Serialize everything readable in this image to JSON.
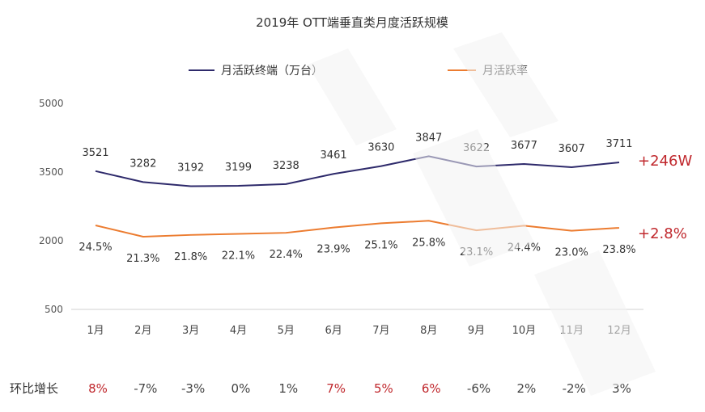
{
  "chart_data": {
    "type": "line",
    "title": "2019年 OTT端垂直类月度活跃规模",
    "categories": [
      "1月",
      "2月",
      "3月",
      "4月",
      "5月",
      "6月",
      "7月",
      "8月",
      "9月",
      "10月",
      "11月",
      "12月"
    ],
    "yticks": [
      "5000",
      "3500",
      "2000",
      "500"
    ],
    "ylim": [
      500,
      5000
    ],
    "legend_position": "top",
    "series": [
      {
        "name": "月活跃终端（万台）",
        "color": "#2e2a6b",
        "values": [
          3521,
          3282,
          3192,
          3199,
          3238,
          3461,
          3630,
          3847,
          3622,
          3677,
          3607,
          3711
        ],
        "labels": [
          "3521",
          "3282",
          "3192",
          "3199",
          "3238",
          "3461",
          "3630",
          "3847",
          "3622",
          "3677",
          "3607",
          "3711"
        ],
        "end_annotation": "+246W"
      },
      {
        "name": "月活跃率",
        "color": "#ec7c30",
        "values": [
          24.5,
          21.3,
          21.8,
          22.1,
          22.4,
          23.9,
          25.1,
          25.8,
          23.1,
          24.4,
          23.0,
          23.8
        ],
        "labels": [
          "24.5%",
          "21.3%",
          "21.8%",
          "22.1%",
          "22.4%",
          "23.9%",
          "25.1%",
          "25.8%",
          "23.1%",
          "24.4%",
          "23.0%",
          "23.8%"
        ],
        "end_annotation": "+2.8%"
      }
    ],
    "growth_row": {
      "label": "环比增长",
      "values": [
        "8%",
        "-7%",
        "-3%",
        "0%",
        "1%",
        "7%",
        "5%",
        "6%",
        "-6%",
        "2%",
        "-2%",
        "3%"
      ],
      "highlighted": [
        true,
        false,
        false,
        false,
        false,
        true,
        true,
        true,
        false,
        false,
        false,
        false
      ],
      "highlight_color": "#c0282d"
    },
    "annotation_color": "#c0282d",
    "grid": false
  }
}
